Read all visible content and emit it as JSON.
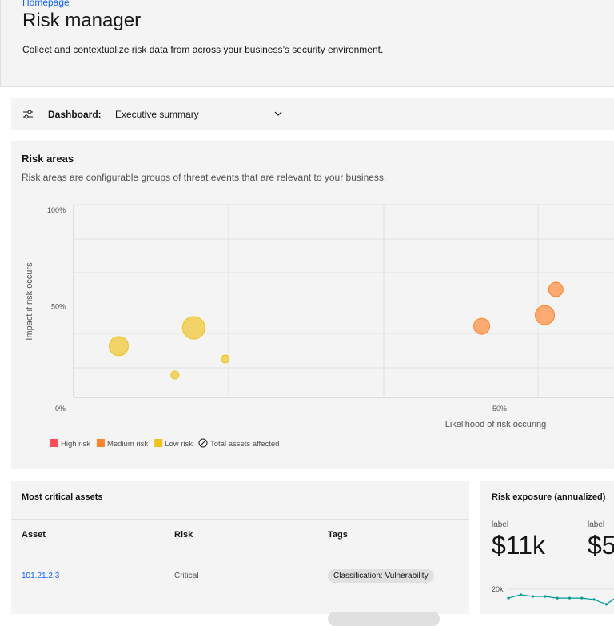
{
  "header": {
    "breadcrumb": "Homepage",
    "title": "Risk manager",
    "description": "Collect and contextualize risk data from across your business’s security environment."
  },
  "toolbar": {
    "label": "Dashboard:",
    "selected": "Executive summary"
  },
  "risk_areas": {
    "title": "Risk areas",
    "description": "Risk areas are configurable groups of threat events that are relevant to your business."
  },
  "chart_data": [
    {
      "type": "bubble",
      "xlabel": "Likelihood of risk occuring",
      "ylabel": "Impact if risk occurs",
      "xlim": [
        0,
        100
      ],
      "ylim": [
        0,
        100
      ],
      "xticks": [
        {
          "value": 50,
          "label": "50%"
        }
      ],
      "yticks": [
        {
          "value": 0,
          "label": "0%"
        },
        {
          "value": 50,
          "label": "50%"
        },
        {
          "value": 100,
          "label": "100%"
        }
      ],
      "size_legend": "Total assets affected",
      "series": [
        {
          "name": "High risk",
          "color": "#fa4d56",
          "x": [],
          "values": [],
          "sizes": []
        },
        {
          "name": "Medium risk",
          "color": "#ff832b",
          "x": [
            47.9,
            55.3,
            56.6
          ],
          "values": [
            36.9,
            42.7,
            56.0
          ],
          "sizes": [
            20,
            24,
            18
          ]
        },
        {
          "name": "Low risk",
          "color": "#f1c21b",
          "x": [
            5.3,
            14.1,
            11.9,
            17.8
          ],
          "values": [
            26.6,
            36.1,
            11.6,
            19.9
          ],
          "sizes": [
            24,
            28,
            10,
            10
          ]
        }
      ]
    },
    {
      "type": "line",
      "color": "#009d9a",
      "ylim": [
        0,
        20000
      ],
      "yticks": [
        {
          "value": 20000,
          "label": "20k"
        }
      ],
      "values": [
        16300,
        17700,
        17000,
        17000,
        16300,
        16300,
        16300,
        15700,
        13700,
        17300
      ]
    }
  ],
  "assets": {
    "title": "Most critical assets",
    "columns": [
      "Asset",
      "Risk",
      "Tags"
    ],
    "rows": [
      [
        "101.21.2.3",
        "Critical",
        "Classification: Vulnerability"
      ]
    ]
  },
  "exposure": {
    "title": "Risk exposure (annualized)",
    "metrics": [
      {
        "label": "label",
        "value": "$11k"
      },
      {
        "label": "label",
        "value": "$5"
      }
    ]
  }
}
